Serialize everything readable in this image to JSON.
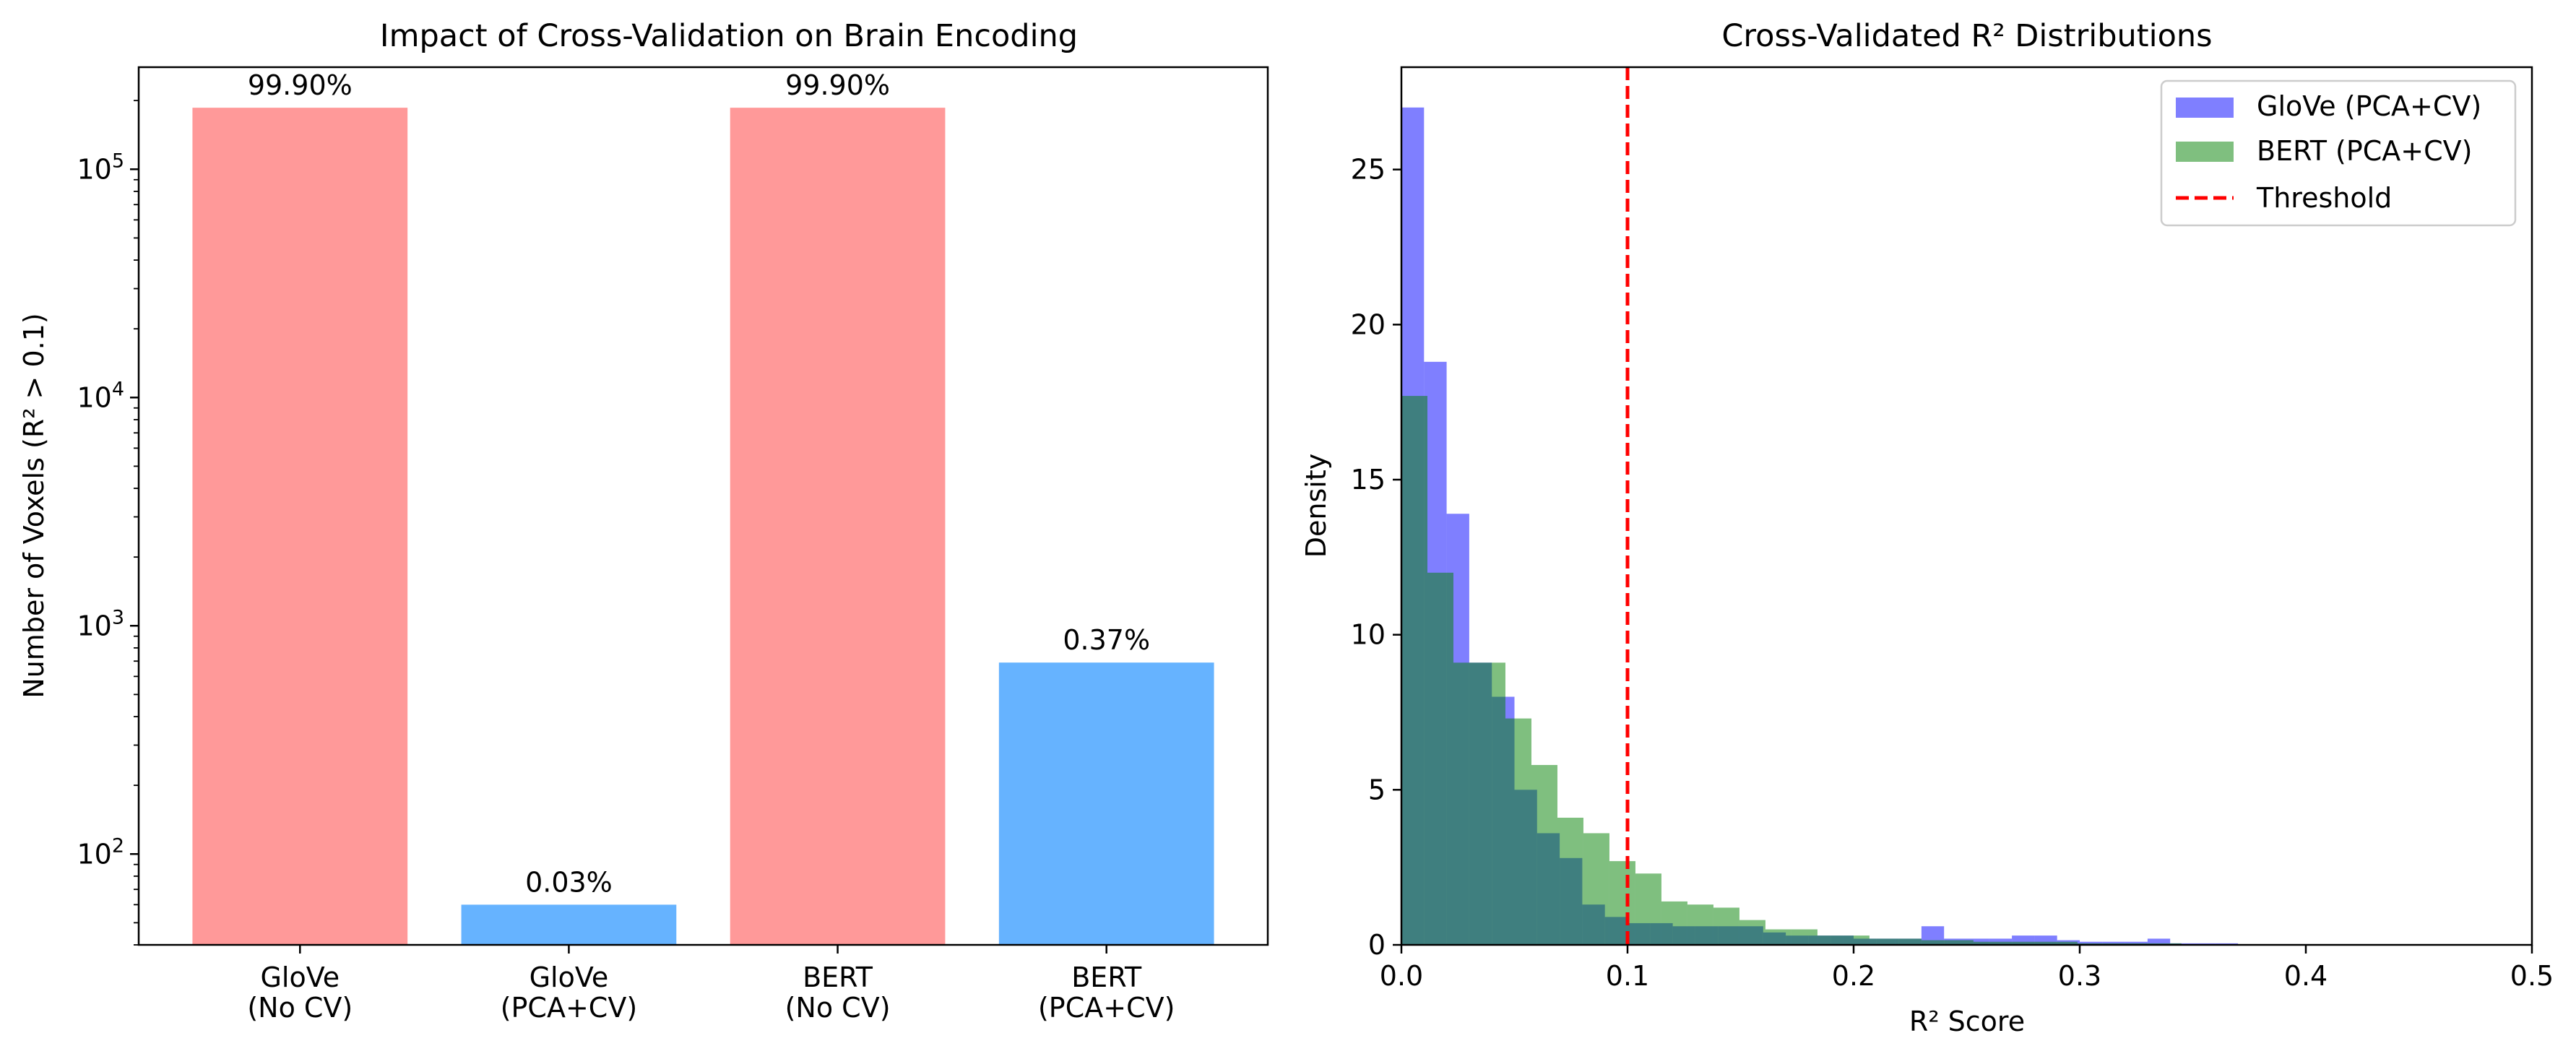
{
  "chart_data": [
    {
      "type": "bar",
      "title": "Impact of Cross-Validation on Brain Encoding",
      "xlabel": "",
      "ylabel": "Number of Voxels (R² > 0.1)",
      "yscale": "log",
      "ylim": [
        40,
        280000
      ],
      "yticks": [
        {
          "value": 100,
          "base": "10",
          "exp": "2"
        },
        {
          "value": 1000,
          "base": "10",
          "exp": "3"
        },
        {
          "value": 10000,
          "base": "10",
          "exp": "4"
        },
        {
          "value": 100000,
          "base": "10",
          "exp": "5"
        }
      ],
      "categories": [
        [
          "GloVe",
          "(No CV)"
        ],
        [
          "GloVe",
          "(PCA+CV)"
        ],
        [
          "BERT",
          "(No CV)"
        ],
        [
          "BERT",
          "(PCA+CV)"
        ]
      ],
      "values": [
        186000,
        60,
        186000,
        690
      ],
      "data_labels": [
        "99.90%",
        "0.03%",
        "99.90%",
        "0.37%"
      ],
      "colors": [
        "#ff9999",
        "#66b3ff",
        "#ff9999",
        "#66b3ff"
      ],
      "grid": false
    },
    {
      "type": "histogram",
      "title": "Cross-Validated R² Distributions",
      "xlabel": "R² Score",
      "ylabel": "Density",
      "xlim": [
        0,
        0.5
      ],
      "ylim": [
        0,
        28.3
      ],
      "xticks": [
        "0.0",
        "0.1",
        "0.2",
        "0.3",
        "0.4",
        "0.5"
      ],
      "yticks": [
        "0",
        "5",
        "10",
        "15",
        "20",
        "25"
      ],
      "legend_position": "top-right",
      "grid": false,
      "series": [
        {
          "name": "GloVe (PCA+CV)",
          "color": "#0000ff",
          "opacity": 0.5,
          "bin_width": 0.01,
          "bin_start": 0,
          "values": [
            27.0,
            18.8,
            13.9,
            9.1,
            8.0,
            5.0,
            3.6,
            2.8,
            1.3,
            0.9,
            0.7,
            0.7,
            0.6,
            0.6,
            0.6,
            0.6,
            0.4,
            0.3,
            0.3,
            0.3,
            0.2,
            0.2,
            0.2,
            0.6,
            0.2,
            0.2,
            0.2,
            0.3,
            0.3,
            0.15,
            0.1,
            0.1,
            0.1,
            0.2,
            0.05,
            0.05,
            0.05,
            0.02,
            0.02,
            0.02
          ]
        },
        {
          "name": "BERT (PCA+CV)",
          "color": "#008000",
          "opacity": 0.5,
          "bin_width": 0.0115,
          "bin_start": 0,
          "values": [
            17.7,
            12.0,
            9.1,
            9.1,
            7.3,
            5.8,
            4.1,
            3.6,
            2.7,
            2.3,
            1.4,
            1.3,
            1.2,
            0.8,
            0.5,
            0.5,
            0.3,
            0.3,
            0.2,
            0.2,
            0.15,
            0.15,
            0.1,
            0.1,
            0.1,
            0.1,
            0.05,
            0.05,
            0.05,
            0.05,
            0.02
          ]
        }
      ],
      "reference_lines": [
        {
          "name": "Threshold",
          "x": 0.1,
          "color": "#ff0000",
          "style": "dashed"
        }
      ]
    }
  ]
}
